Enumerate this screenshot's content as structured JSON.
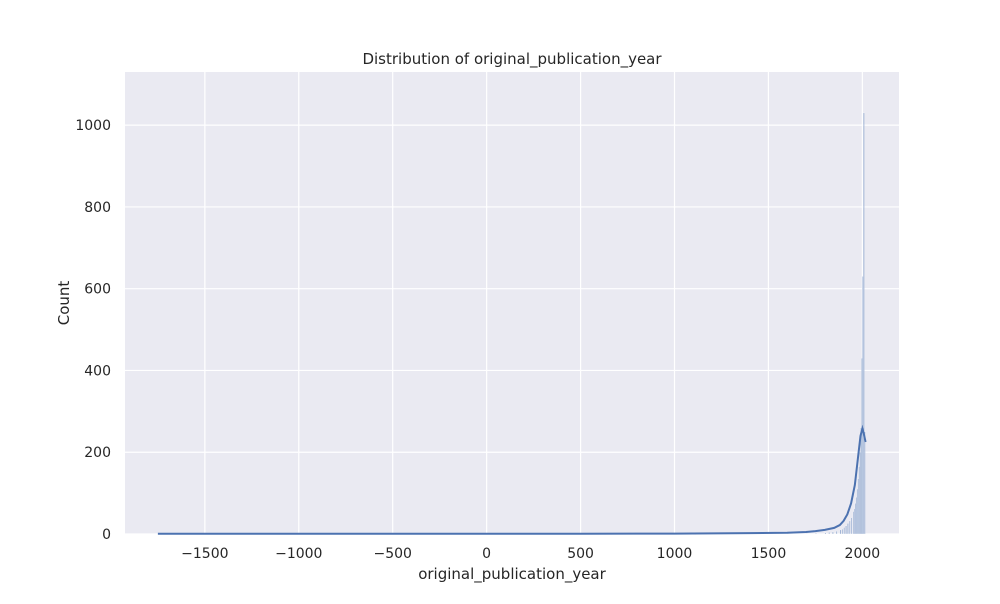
{
  "chart_data": {
    "type": "bar",
    "title": "Distribution of original_publication_year",
    "xlabel": "original_publication_year",
    "ylabel": "Count",
    "xlim": [
      -1925,
      2195
    ],
    "ylim": [
      0,
      1130
    ],
    "xticks": [
      -1500,
      -1000,
      -500,
      0,
      500,
      1000,
      1500,
      2000
    ],
    "xtick_labels": [
      "−1500",
      "−1000",
      "−500",
      "0",
      "500",
      "1000",
      "1500",
      "2000"
    ],
    "yticks": [
      0,
      200,
      400,
      600,
      800,
      1000
    ],
    "ytick_labels": [
      "0",
      "200",
      "400",
      "600",
      "800",
      "1000"
    ],
    "grid": true,
    "legend": "none",
    "bin_width": 5,
    "bins": [
      {
        "x": 1600,
        "count": 1
      },
      {
        "x": 1700,
        "count": 1
      },
      {
        "x": 1750,
        "count": 2
      },
      {
        "x": 1800,
        "count": 3
      },
      {
        "x": 1820,
        "count": 4
      },
      {
        "x": 1840,
        "count": 5
      },
      {
        "x": 1860,
        "count": 7
      },
      {
        "x": 1880,
        "count": 10
      },
      {
        "x": 1890,
        "count": 12
      },
      {
        "x": 1900,
        "count": 16
      },
      {
        "x": 1910,
        "count": 20
      },
      {
        "x": 1920,
        "count": 26
      },
      {
        "x": 1930,
        "count": 32
      },
      {
        "x": 1940,
        "count": 40
      },
      {
        "x": 1950,
        "count": 55
      },
      {
        "x": 1955,
        "count": 62
      },
      {
        "x": 1960,
        "count": 75
      },
      {
        "x": 1965,
        "count": 90
      },
      {
        "x": 1970,
        "count": 110
      },
      {
        "x": 1975,
        "count": 135
      },
      {
        "x": 1980,
        "count": 165
      },
      {
        "x": 1985,
        "count": 200
      },
      {
        "x": 1990,
        "count": 260
      },
      {
        "x": 1995,
        "count": 430
      },
      {
        "x": 2000,
        "count": 630
      },
      {
        "x": 2005,
        "count": 1030
      },
      {
        "x": 2010,
        "count": 250
      }
    ],
    "kde": {
      "x": [
        -1750,
        -1000,
        -500,
        0,
        500,
        1000,
        1400,
        1600,
        1700,
        1750,
        1800,
        1850,
        1880,
        1900,
        1920,
        1940,
        1960,
        1975,
        1990,
        2000,
        2005,
        2010,
        2017
      ],
      "y": [
        0.5,
        0.5,
        0.5,
        0.5,
        0.5,
        1,
        2,
        3,
        5,
        7,
        10,
        15,
        22,
        32,
        48,
        75,
        120,
        180,
        240,
        258,
        250,
        240,
        225
      ]
    },
    "colors": {
      "bar": "#4c72b0",
      "kde": "#4c72b0",
      "background": "#eaeaf2",
      "grid": "#ffffff"
    }
  }
}
